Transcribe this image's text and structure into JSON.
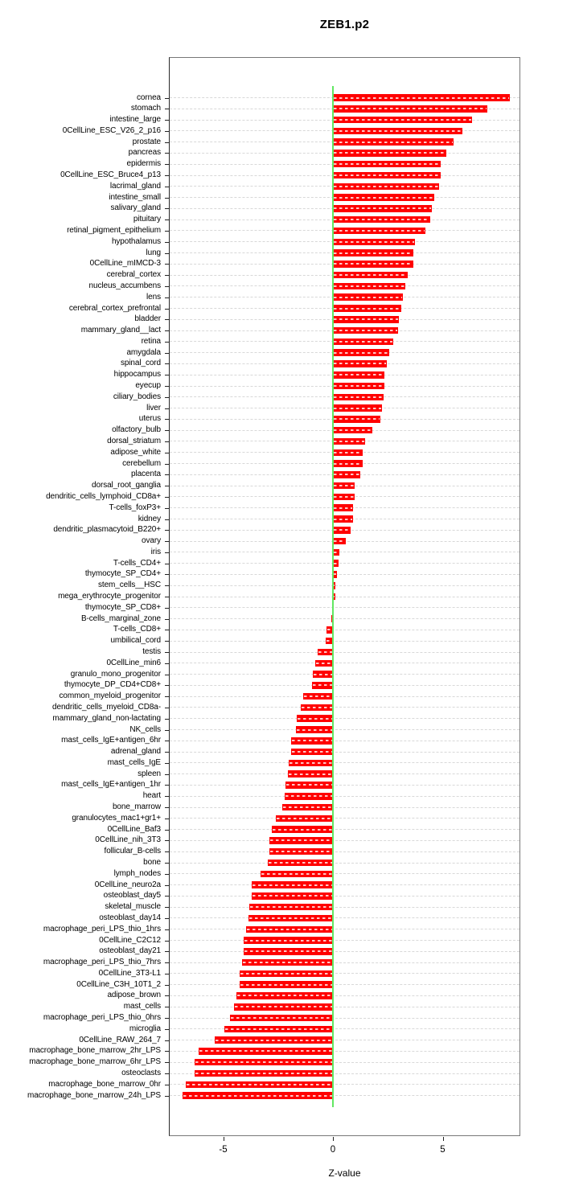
{
  "chart_data": {
    "type": "bar",
    "orientation": "horizontal",
    "title": "ZEB1.p2",
    "xlabel": "Z-value",
    "x_ticks": [
      -5,
      0,
      5
    ],
    "xlim": [
      -7.45,
      8.55
    ],
    "grid": true,
    "zero_line": true,
    "legend": "none",
    "categories": [
      "cornea",
      "stomach",
      "intestine_large",
      "0CellLine_ESC_V26_2_p16",
      "prostate",
      "pancreas",
      "epidermis",
      "0CellLine_ESC_Bruce4_p13",
      "lacrimal_gland",
      "intestine_small",
      "salivary_gland",
      "pituitary",
      "retinal_pigment_epithelium",
      "hypothalamus",
      "lung",
      "0CellLine_mIMCD-3",
      "cerebral_cortex",
      "nucleus_accumbens",
      "lens",
      "cerebral_cortex_prefrontal",
      "bladder",
      "mammary_gland__lact",
      "retina",
      "amygdala",
      "spinal_cord",
      "hippocampus",
      "eyecup",
      "ciliary_bodies",
      "liver",
      "uterus",
      "olfactory_bulb",
      "dorsal_striatum",
      "adipose_white",
      "cerebellum",
      "placenta",
      "dorsal_root_ganglia",
      "dendritic_cells_lymphoid_CD8a+",
      "T-cells_foxP3+",
      "kidney",
      "dendritic_plasmacytoid_B220+",
      "ovary",
      "iris",
      "T-cells_CD4+",
      "thymocyte_SP_CD4+",
      "stem_cells__HSC",
      "mega_erythrocyte_progenitor",
      "thymocyte_SP_CD8+",
      "B-cells_marginal_zone",
      "T-cells_CD8+",
      "umbilical_cord",
      "testis",
      "0CellLine_min6",
      "granulo_mono_progenitor",
      "thymocyte_DP_CD4+CD8+",
      "common_myeloid_progenitor",
      "dendritic_cells_myeloid_CD8a-",
      "mammary_gland_non-lactating",
      "NK_cells",
      "mast_cells_IgE+antigen_6hr",
      "adrenal_gland",
      "mast_cells_IgE",
      "spleen",
      "mast_cells_IgE+antigen_1hr",
      "heart",
      "bone_marrow",
      "granulocytes_mac1+gr1+",
      "0CellLine_Baf3",
      "0CellLine_nih_3T3",
      "follicular_B-cells",
      "bone",
      "lymph_nodes",
      "0CellLine_neuro2a",
      "osteoblast_day5",
      "skeletal_muscle",
      "osteoblast_day14",
      "macrophage_peri_LPS_thio_1hrs",
      "0CellLine_C2C12",
      "osteoblast_day21",
      "macrophage_peri_LPS_thio_7hrs",
      "0CellLine_3T3-L1",
      "0CellLine_C3H_10T1_2",
      "adipose_brown",
      "mast_cells",
      "macrophage_peri_LPS_thio_0hrs",
      "microglia",
      "0CellLine_RAW_264_7",
      "macrophage_bone_marrow_2hr_LPS",
      "macrophage_bone_marrow_6hr_LPS",
      "osteoclasts",
      "macrophage_bone_marrow_0hr",
      "macrophage_bone_marrow_24h_LPS"
    ],
    "values": [
      8.05,
      7.05,
      6.35,
      5.9,
      5.5,
      5.15,
      4.9,
      4.9,
      4.85,
      4.6,
      4.5,
      4.45,
      4.2,
      3.75,
      3.65,
      3.65,
      3.4,
      3.3,
      3.2,
      3.1,
      3.0,
      2.95,
      2.75,
      2.55,
      2.45,
      2.35,
      2.35,
      2.3,
      2.25,
      2.15,
      1.8,
      1.45,
      1.35,
      1.35,
      1.25,
      1.0,
      1.0,
      0.9,
      0.9,
      0.8,
      0.6,
      0.3,
      0.27,
      0.2,
      0.1,
      0.1,
      0.03,
      -0.08,
      -0.3,
      -0.33,
      -0.7,
      -0.8,
      -0.9,
      -0.95,
      -1.35,
      -1.45,
      -1.65,
      -1.7,
      -1.9,
      -1.9,
      -2.0,
      -2.05,
      -2.15,
      -2.2,
      -2.3,
      -2.6,
      -2.8,
      -2.9,
      -2.9,
      -2.95,
      -3.3,
      -3.7,
      -3.7,
      -3.8,
      -3.85,
      -3.95,
      -4.05,
      -4.05,
      -4.15,
      -4.25,
      -4.25,
      -4.4,
      -4.5,
      -4.7,
      -4.95,
      -5.4,
      -6.1,
      -6.3,
      -6.3,
      -6.7,
      -6.85
    ],
    "colors": {
      "bar": "#ff0000",
      "zero_line": "#62e762",
      "grid": "#d8d8d8",
      "box": "#777777"
    }
  }
}
